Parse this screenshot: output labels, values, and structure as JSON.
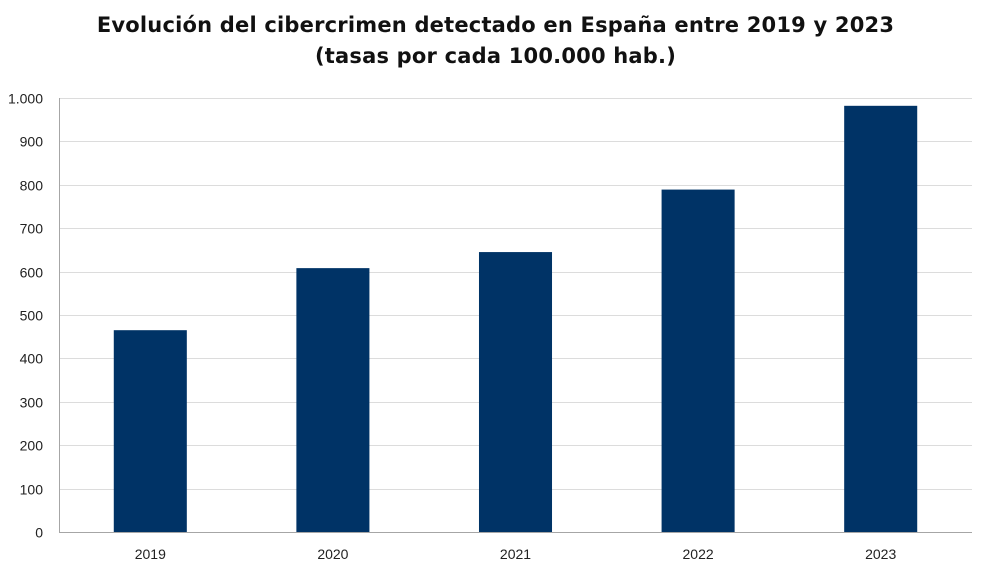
{
  "chart_data": {
    "type": "bar",
    "title": "Evolución del cibercrimen detectado en España entre 2019 y 2023",
    "subtitle": "(tasas por cada 100.000 hab.)",
    "xlabel": "",
    "ylabel": "",
    "categories": [
      "2019",
      "2020",
      "2021",
      "2022",
      "2023"
    ],
    "values": [
      465,
      608,
      645,
      789,
      982
    ],
    "ylim": [
      0,
      1000
    ],
    "yticks": [
      0,
      100,
      200,
      300,
      400,
      500,
      600,
      700,
      800,
      900,
      1000
    ],
    "ytick_labels": [
      "0",
      "100",
      "200",
      "300",
      "400",
      "500",
      "600",
      "700",
      "800",
      "900",
      "1.000"
    ],
    "grid": true,
    "legend": "none",
    "bar_color": "#003366",
    "grid_color": "#dcdcdc"
  }
}
